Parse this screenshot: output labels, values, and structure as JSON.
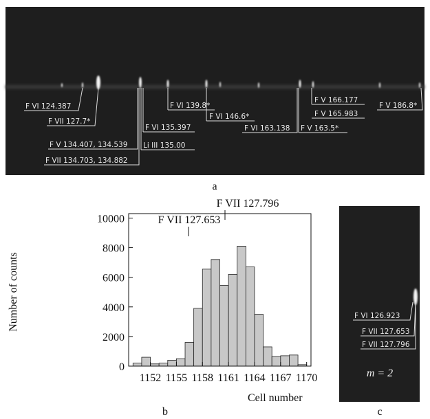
{
  "panel_a": {
    "labels": [
      "F VI 124.387",
      "F VII 127.7*",
      "F V 134.407, 134.539",
      "F VII 134.703, 134.882",
      "F VI 135.397",
      "Li III 135.00",
      "F VI 139.8*",
      "F VI 146.6*",
      "F VI 163.138",
      "F V 163.5*",
      "F V 166.177",
      "F V 165.983",
      "F V 186.8*"
    ],
    "caption": "a"
  },
  "chart_data": {
    "type": "histogram",
    "bins": [
      1150,
      1151,
      1152,
      1153,
      1154,
      1155,
      1156,
      1157,
      1158,
      1159,
      1160,
      1161,
      1162,
      1163,
      1164,
      1165,
      1166,
      1167,
      1168,
      1169,
      1170
    ],
    "values": [
      200,
      600,
      150,
      200,
      400,
      500,
      1600,
      3900,
      6550,
      7200,
      5450,
      6200,
      8100,
      6700,
      3500,
      1300,
      650,
      700,
      750,
      100
    ],
    "color": "#c8c8c8",
    "xlim": [
      1149.5,
      1170.5
    ],
    "xticks": [
      1152,
      1155,
      1158,
      1161,
      1164,
      1167,
      1170
    ],
    "ylim": [
      0,
      10300
    ],
    "yticks": [
      0,
      2000,
      4000,
      6000,
      8000,
      10000
    ],
    "xlabel": "Cell number",
    "ylabel": "Number of counts",
    "annotations": [
      "F VII 127.653",
      "F VII 127.796"
    ],
    "caption": "b"
  },
  "panel_c": {
    "labels": [
      "F VI 126.923",
      "F VII 127.653",
      "F VII 127.796"
    ],
    "order": "m = 2",
    "caption": "c"
  }
}
